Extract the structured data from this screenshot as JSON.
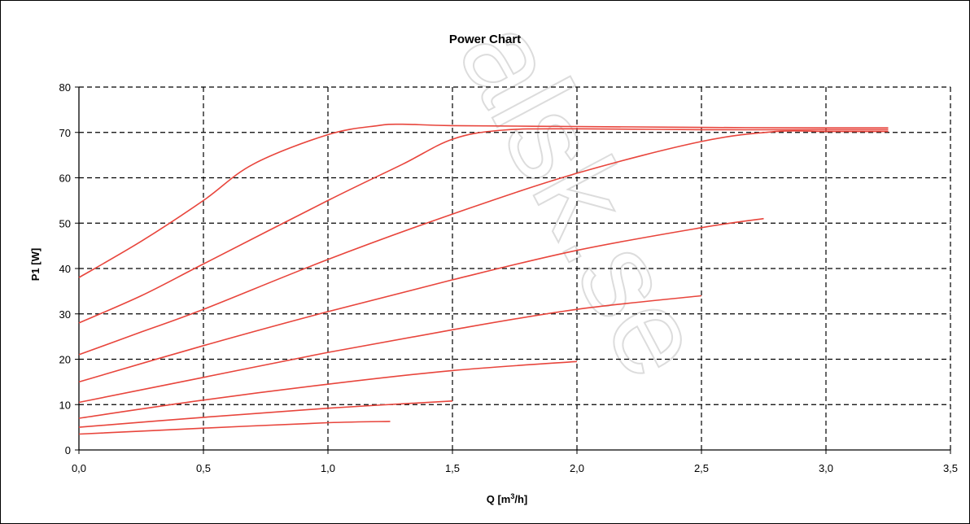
{
  "chart_data": {
    "type": "line",
    "title": "Power Chart",
    "xlabel": "Q [m³/h]",
    "xlabel_base": "Q [m",
    "xlabel_sup": "3",
    "xlabel_tail": "/h]",
    "ylabel": "P1 [W]",
    "xlim": [
      0,
      3.5
    ],
    "ylim": [
      0,
      80
    ],
    "x_ticks": [
      "0,0",
      "0,5",
      "1,0",
      "1,5",
      "2,0",
      "2,5",
      "3,0",
      "3,5"
    ],
    "y_ticks": [
      "0",
      "10",
      "20",
      "30",
      "40",
      "50",
      "60",
      "70",
      "80"
    ],
    "grid": true,
    "grid_style": "dashed",
    "line_color": "#e8453c",
    "series": [
      {
        "x": [
          0,
          0.25,
          0.5,
          0.7,
          1.0,
          1.2,
          1.3,
          1.5,
          2.0,
          2.5,
          3.0,
          3.25
        ],
        "y": [
          38,
          46,
          55,
          63,
          69.5,
          71.5,
          71.8,
          71.5,
          71.3,
          71.1,
          71.0,
          71.0
        ]
      },
      {
        "x": [
          0,
          0.25,
          0.5,
          1.0,
          1.3,
          1.5,
          1.7,
          2.0,
          2.5,
          3.0,
          3.25
        ],
        "y": [
          28,
          34,
          41,
          55,
          63,
          68.5,
          70.5,
          70.8,
          70.6,
          70.6,
          70.6
        ]
      },
      {
        "x": [
          0,
          0.25,
          0.5,
          1.0,
          1.5,
          2.0,
          2.5,
          2.8,
          3.0,
          3.25
        ],
        "y": [
          21,
          26,
          31,
          42,
          52,
          61,
          68,
          70.2,
          70.2,
          70.2
        ]
      },
      {
        "x": [
          0,
          0.5,
          1.0,
          1.5,
          2.0,
          2.5,
          2.75
        ],
        "y": [
          15,
          23,
          30.5,
          37.5,
          44,
          49,
          51
        ]
      },
      {
        "x": [
          0,
          0.5,
          1.0,
          1.5,
          2.0,
          2.5
        ],
        "y": [
          10.5,
          16,
          21.5,
          26.5,
          31,
          34
        ]
      },
      {
        "x": [
          0,
          0.5,
          1.0,
          1.5,
          2.0
        ],
        "y": [
          7,
          11,
          14.5,
          17.5,
          19.5
        ]
      },
      {
        "x": [
          0,
          0.5,
          1.0,
          1.5
        ],
        "y": [
          5,
          7.2,
          9.2,
          10.8
        ]
      },
      {
        "x": [
          0,
          0.5,
          1.0,
          1.25
        ],
        "y": [
          3.5,
          4.8,
          6,
          6.3
        ]
      }
    ]
  }
}
